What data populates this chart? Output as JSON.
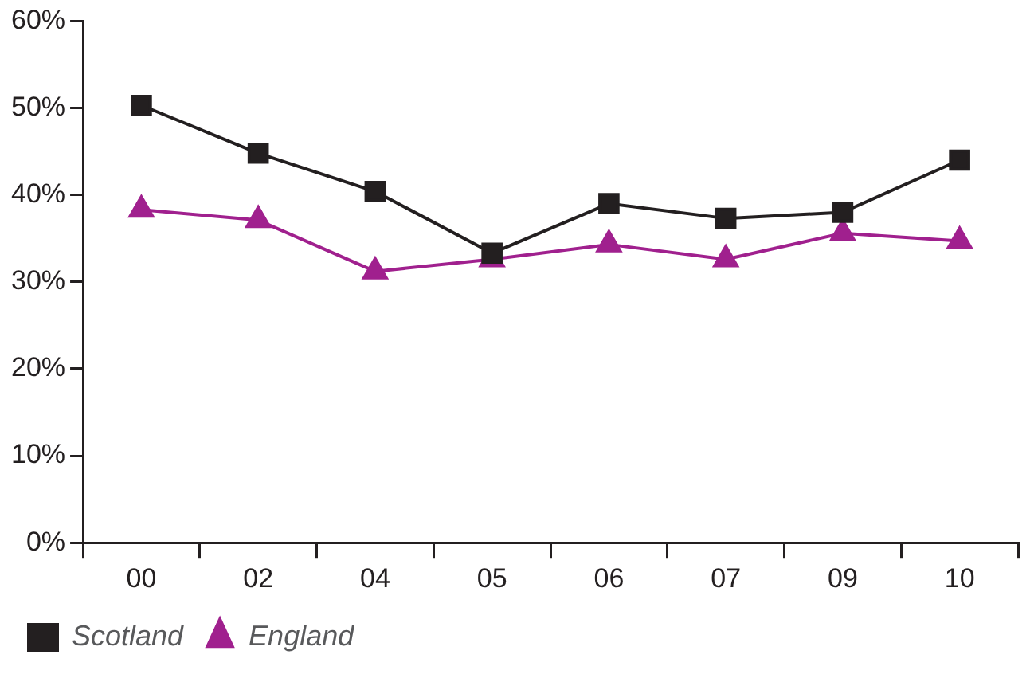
{
  "chart_data": {
    "type": "line",
    "categories": [
      "00",
      "02",
      "04",
      "05",
      "06",
      "07",
      "09",
      "10"
    ],
    "series": [
      {
        "name": "Scotland",
        "color": "#231f20",
        "marker": "square",
        "values": [
          50.3,
          44.8,
          40.4,
          33.3,
          39,
          37.3,
          38,
          44
        ]
      },
      {
        "name": "England",
        "color": "#a0208e",
        "marker": "triangle",
        "values": [
          38.3,
          37.1,
          31.2,
          32.6,
          34.3,
          32.6,
          35.6,
          34.7
        ]
      }
    ],
    "ylim": [
      0,
      60
    ],
    "yticks": [
      {
        "value": 0,
        "label": "0%"
      },
      {
        "value": 10,
        "label": "10%"
      },
      {
        "value": 20,
        "label": "20%"
      },
      {
        "value": 30,
        "label": "30%"
      },
      {
        "value": 40,
        "label": "40%"
      },
      {
        "value": 50,
        "label": "50%"
      },
      {
        "value": 60,
        "label": "60%"
      }
    ],
    "grid": false,
    "legend": "bottom left",
    "line_style": "solid"
  }
}
